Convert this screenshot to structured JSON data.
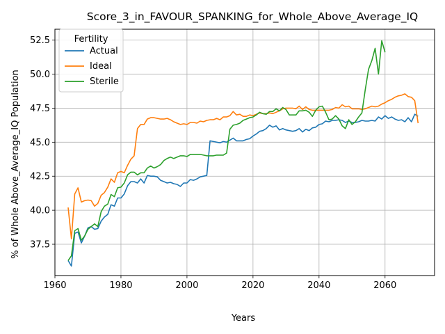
{
  "chart_data": {
    "type": "line",
    "title": "Score_3_in_FAVOUR_SPANKING_for_Whole_Above_Average_IQ",
    "xlabel": "Years",
    "ylabel": "% of Whole Above_Average_IQ Population",
    "xlim": [
      1960,
      2075
    ],
    "ylim": [
      35.2,
      53.3
    ],
    "xticks": [
      1960,
      1980,
      2000,
      2020,
      2040,
      2060
    ],
    "yticks": [
      37.5,
      40.0,
      42.5,
      45.0,
      47.5,
      50.0,
      52.5
    ],
    "ytick_labels": [
      "37.5",
      "40.0",
      "42.5",
      "45.0",
      "47.5",
      "50.0",
      "52.5"
    ],
    "grid": true,
    "legend": {
      "title": "Fertility",
      "placement": "top-left"
    },
    "series": [
      {
        "name": "Actual",
        "color": "#1f77b4",
        "points": [
          [
            1964,
            36.3
          ],
          [
            1965,
            35.9
          ],
          [
            1966,
            38.3
          ],
          [
            1967,
            38.4
          ],
          [
            1968,
            37.6
          ],
          [
            1969,
            38.1
          ],
          [
            1970,
            38.7
          ],
          [
            1971,
            38.8
          ],
          [
            1972,
            38.6
          ],
          [
            1973,
            38.65
          ],
          [
            1974,
            39.2
          ],
          [
            1975,
            39.5
          ],
          [
            1976,
            39.7
          ],
          [
            1977,
            40.4
          ],
          [
            1978,
            40.3
          ],
          [
            1979,
            40.9
          ],
          [
            1980,
            40.9
          ],
          [
            1981,
            41.2
          ],
          [
            1982,
            41.8
          ],
          [
            1983,
            42.1
          ],
          [
            1984,
            42.1
          ],
          [
            1985,
            42.0
          ],
          [
            1986,
            42.3
          ],
          [
            1987,
            42.0
          ],
          [
            1988,
            42.55
          ],
          [
            1989,
            42.5
          ],
          [
            1990,
            42.5
          ],
          [
            1991,
            42.45
          ],
          [
            1992,
            42.2
          ],
          [
            1993,
            42.1
          ],
          [
            1994,
            42.0
          ],
          [
            1995,
            42.05
          ],
          [
            1996,
            41.95
          ],
          [
            1997,
            41.9
          ],
          [
            1998,
            41.75
          ],
          [
            1999,
            42.0
          ],
          [
            2000,
            42.0
          ],
          [
            2001,
            42.25
          ],
          [
            2002,
            42.2
          ],
          [
            2003,
            42.3
          ],
          [
            2004,
            42.45
          ],
          [
            2005,
            42.5
          ],
          [
            2006,
            42.55
          ],
          [
            2007,
            45.1
          ],
          [
            2008,
            45.05
          ],
          [
            2009,
            45.0
          ],
          [
            2010,
            44.95
          ],
          [
            2011,
            45.05
          ],
          [
            2012,
            45.0
          ],
          [
            2013,
            45.15
          ],
          [
            2014,
            45.3
          ],
          [
            2015,
            45.1
          ],
          [
            2016,
            45.1
          ],
          [
            2017,
            45.1
          ],
          [
            2018,
            45.2
          ],
          [
            2019,
            45.25
          ],
          [
            2020,
            45.45
          ],
          [
            2021,
            45.6
          ],
          [
            2022,
            45.8
          ],
          [
            2023,
            45.85
          ],
          [
            2024,
            46.0
          ],
          [
            2025,
            46.25
          ],
          [
            2026,
            46.1
          ],
          [
            2027,
            46.2
          ],
          [
            2028,
            45.9
          ],
          [
            2029,
            46.0
          ],
          [
            2030,
            45.9
          ],
          [
            2031,
            45.85
          ],
          [
            2032,
            45.8
          ],
          [
            2033,
            45.85
          ],
          [
            2034,
            46.0
          ],
          [
            2035,
            45.75
          ],
          [
            2036,
            45.95
          ],
          [
            2037,
            45.85
          ],
          [
            2038,
            46.05
          ],
          [
            2039,
            46.1
          ],
          [
            2040,
            46.3
          ],
          [
            2041,
            46.35
          ],
          [
            2042,
            46.55
          ],
          [
            2043,
            46.5
          ],
          [
            2044,
            46.6
          ],
          [
            2045,
            46.6
          ],
          [
            2046,
            46.65
          ],
          [
            2047,
            46.6
          ],
          [
            2048,
            46.45
          ],
          [
            2049,
            46.55
          ],
          [
            2050,
            46.45
          ],
          [
            2051,
            46.45
          ],
          [
            2052,
            46.5
          ],
          [
            2053,
            46.6
          ],
          [
            2054,
            46.55
          ],
          [
            2055,
            46.55
          ],
          [
            2056,
            46.6
          ],
          [
            2057,
            46.55
          ],
          [
            2058,
            46.85
          ],
          [
            2059,
            46.7
          ],
          [
            2060,
            46.95
          ],
          [
            2061,
            46.75
          ],
          [
            2062,
            46.85
          ],
          [
            2063,
            46.7
          ],
          [
            2064,
            46.6
          ],
          [
            2065,
            46.65
          ],
          [
            2066,
            46.5
          ],
          [
            2067,
            46.8
          ],
          [
            2068,
            46.5
          ],
          [
            2069,
            47.05
          ],
          [
            2070,
            46.9
          ]
        ]
      },
      {
        "name": "Ideal",
        "color": "#ff7f0e",
        "points": [
          [
            1964,
            40.2
          ],
          [
            1965,
            37.9
          ],
          [
            1966,
            41.2
          ],
          [
            1967,
            41.65
          ],
          [
            1968,
            40.6
          ],
          [
            1969,
            40.7
          ],
          [
            1970,
            40.75
          ],
          [
            1971,
            40.7
          ],
          [
            1972,
            40.3
          ],
          [
            1973,
            40.5
          ],
          [
            1974,
            41.1
          ],
          [
            1975,
            41.3
          ],
          [
            1976,
            41.7
          ],
          [
            1977,
            42.3
          ],
          [
            1978,
            42.05
          ],
          [
            1979,
            42.75
          ],
          [
            1980,
            42.85
          ],
          [
            1981,
            42.75
          ],
          [
            1982,
            43.3
          ],
          [
            1983,
            43.75
          ],
          [
            1984,
            44.0
          ],
          [
            1985,
            46.0
          ],
          [
            1986,
            46.3
          ],
          [
            1987,
            46.3
          ],
          [
            1988,
            46.7
          ],
          [
            1989,
            46.8
          ],
          [
            1990,
            46.8
          ],
          [
            1991,
            46.75
          ],
          [
            1992,
            46.7
          ],
          [
            1993,
            46.7
          ],
          [
            1994,
            46.75
          ],
          [
            1995,
            46.65
          ],
          [
            1996,
            46.5
          ],
          [
            1997,
            46.4
          ],
          [
            1998,
            46.3
          ],
          [
            1999,
            46.35
          ],
          [
            2000,
            46.3
          ],
          [
            2001,
            46.45
          ],
          [
            2002,
            46.45
          ],
          [
            2003,
            46.4
          ],
          [
            2004,
            46.55
          ],
          [
            2005,
            46.5
          ],
          [
            2006,
            46.6
          ],
          [
            2007,
            46.65
          ],
          [
            2008,
            46.65
          ],
          [
            2009,
            46.75
          ],
          [
            2010,
            46.65
          ],
          [
            2011,
            46.85
          ],
          [
            2012,
            46.85
          ],
          [
            2013,
            46.95
          ],
          [
            2014,
            47.25
          ],
          [
            2015,
            47.0
          ],
          [
            2016,
            47.05
          ],
          [
            2017,
            46.9
          ],
          [
            2018,
            46.9
          ],
          [
            2019,
            47.0
          ],
          [
            2020,
            46.95
          ],
          [
            2021,
            47.05
          ],
          [
            2022,
            47.15
          ],
          [
            2023,
            47.1
          ],
          [
            2024,
            47.1
          ],
          [
            2025,
            47.15
          ],
          [
            2026,
            47.1
          ],
          [
            2027,
            47.2
          ],
          [
            2028,
            47.3
          ],
          [
            2029,
            47.45
          ],
          [
            2030,
            47.5
          ],
          [
            2031,
            47.5
          ],
          [
            2032,
            47.5
          ],
          [
            2033,
            47.45
          ],
          [
            2034,
            47.65
          ],
          [
            2035,
            47.4
          ],
          [
            2036,
            47.6
          ],
          [
            2037,
            47.4
          ],
          [
            2038,
            47.35
          ],
          [
            2039,
            47.35
          ],
          [
            2040,
            47.35
          ],
          [
            2041,
            47.35
          ],
          [
            2042,
            47.35
          ],
          [
            2043,
            47.35
          ],
          [
            2044,
            47.4
          ],
          [
            2045,
            47.55
          ],
          [
            2046,
            47.5
          ],
          [
            2047,
            47.75
          ],
          [
            2048,
            47.6
          ],
          [
            2049,
            47.65
          ],
          [
            2050,
            47.45
          ],
          [
            2051,
            47.45
          ],
          [
            2052,
            47.45
          ],
          [
            2053,
            47.4
          ],
          [
            2054,
            47.45
          ],
          [
            2055,
            47.55
          ],
          [
            2056,
            47.65
          ],
          [
            2057,
            47.6
          ],
          [
            2058,
            47.65
          ],
          [
            2059,
            47.8
          ],
          [
            2060,
            47.9
          ],
          [
            2061,
            48.05
          ],
          [
            2062,
            48.15
          ],
          [
            2063,
            48.3
          ],
          [
            2064,
            48.4
          ],
          [
            2065,
            48.45
          ],
          [
            2066,
            48.55
          ],
          [
            2067,
            48.35
          ],
          [
            2068,
            48.3
          ],
          [
            2069,
            48.05
          ],
          [
            2070,
            46.4
          ]
        ]
      },
      {
        "name": "Sterile",
        "color": "#2ca02c",
        "points": [
          [
            1964,
            36.3
          ],
          [
            1965,
            36.65
          ],
          [
            1966,
            38.5
          ],
          [
            1967,
            38.65
          ],
          [
            1968,
            37.8
          ],
          [
            1969,
            38.1
          ],
          [
            1970,
            38.6
          ],
          [
            1971,
            38.8
          ],
          [
            1972,
            39.0
          ],
          [
            1973,
            38.8
          ],
          [
            1974,
            39.9
          ],
          [
            1975,
            40.3
          ],
          [
            1976,
            40.45
          ],
          [
            1977,
            41.15
          ],
          [
            1978,
            41.0
          ],
          [
            1979,
            41.65
          ],
          [
            1980,
            41.7
          ],
          [
            1981,
            42.0
          ],
          [
            1982,
            42.6
          ],
          [
            1983,
            42.8
          ],
          [
            1984,
            42.8
          ],
          [
            1985,
            42.6
          ],
          [
            1986,
            42.75
          ],
          [
            1987,
            42.75
          ],
          [
            1988,
            43.1
          ],
          [
            1989,
            43.25
          ],
          [
            1990,
            43.1
          ],
          [
            1991,
            43.2
          ],
          [
            1992,
            43.35
          ],
          [
            1993,
            43.65
          ],
          [
            1994,
            43.8
          ],
          [
            1995,
            43.9
          ],
          [
            1996,
            43.8
          ],
          [
            1997,
            43.9
          ],
          [
            1998,
            44.0
          ],
          [
            1999,
            44.0
          ],
          [
            2000,
            43.95
          ],
          [
            2001,
            44.1
          ],
          [
            2002,
            44.1
          ],
          [
            2003,
            44.1
          ],
          [
            2004,
            44.1
          ],
          [
            2005,
            44.05
          ],
          [
            2006,
            44.0
          ],
          [
            2007,
            44.0
          ],
          [
            2008,
            44.0
          ],
          [
            2009,
            44.05
          ],
          [
            2010,
            44.05
          ],
          [
            2011,
            44.05
          ],
          [
            2012,
            44.2
          ],
          [
            2013,
            45.95
          ],
          [
            2014,
            46.25
          ],
          [
            2015,
            46.3
          ],
          [
            2016,
            46.4
          ],
          [
            2017,
            46.6
          ],
          [
            2018,
            46.7
          ],
          [
            2019,
            46.8
          ],
          [
            2020,
            46.85
          ],
          [
            2021,
            47.0
          ],
          [
            2022,
            47.2
          ],
          [
            2023,
            47.1
          ],
          [
            2024,
            47.05
          ],
          [
            2025,
            47.25
          ],
          [
            2026,
            47.25
          ],
          [
            2027,
            47.45
          ],
          [
            2028,
            47.3
          ],
          [
            2029,
            47.55
          ],
          [
            2030,
            47.4
          ],
          [
            2031,
            47.0
          ],
          [
            2032,
            47.0
          ],
          [
            2033,
            47.0
          ],
          [
            2034,
            47.3
          ],
          [
            2035,
            47.3
          ],
          [
            2036,
            47.35
          ],
          [
            2037,
            47.2
          ],
          [
            2038,
            46.9
          ],
          [
            2039,
            47.35
          ],
          [
            2040,
            47.6
          ],
          [
            2041,
            47.65
          ],
          [
            2042,
            47.2
          ],
          [
            2043,
            46.65
          ],
          [
            2044,
            46.7
          ],
          [
            2045,
            46.95
          ],
          [
            2046,
            46.7
          ],
          [
            2047,
            46.2
          ],
          [
            2048,
            46.0
          ],
          [
            2049,
            46.65
          ],
          [
            2050,
            46.3
          ],
          [
            2051,
            46.5
          ],
          [
            2052,
            46.85
          ],
          [
            2053,
            47.15
          ],
          [
            2054,
            48.85
          ],
          [
            2055,
            50.35
          ],
          [
            2056,
            51.0
          ],
          [
            2057,
            51.9
          ],
          [
            2058,
            50.0
          ],
          [
            2059,
            52.45
          ],
          [
            2060,
            51.6
          ]
        ]
      }
    ]
  }
}
